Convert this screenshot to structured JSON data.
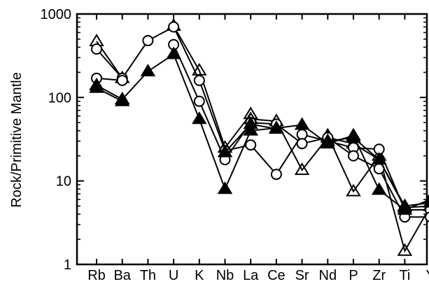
{
  "chart_data": {
    "type": "line",
    "title": "",
    "xlabel": "",
    "ylabel": "Rock/Primitive Mantle",
    "yscale": "log",
    "ylim": [
      1,
      1000
    ],
    "yticks": [
      "1",
      "10",
      "100",
      "1000"
    ],
    "categories": [
      "Rb",
      "Ba",
      "Th",
      "U",
      "K",
      "Nb",
      "La",
      "Ce",
      "Sr",
      "Nd",
      "P",
      "Zr",
      "Ti",
      "Y"
    ],
    "grid": false,
    "legend": "none",
    "series": [
      {
        "marker": "open-triangle",
        "values": [
          470,
          170,
          null,
          720,
          210,
          25,
          63,
          null,
          null,
          35,
          7.5,
          20,
          1.45,
          5
        ]
      },
      {
        "marker": "open-triangle",
        "values": [
          null,
          null,
          null,
          null,
          null,
          null,
          55,
          52,
          13.5,
          33,
          28,
          18,
          4.8,
          5
        ]
      },
      {
        "marker": "open-circle",
        "values": [
          380,
          170,
          480,
          700,
          160,
          23,
          27,
          12,
          36,
          30,
          25,
          24,
          4.5,
          4.5
        ]
      },
      {
        "marker": "open-circle",
        "values": [
          170,
          160,
          null,
          430,
          90,
          18,
          50,
          48,
          28,
          33,
          20,
          14,
          3.7,
          3.7
        ]
      },
      {
        "marker": "filled-triangle",
        "values": [
          140,
          95,
          205,
          330,
          55,
          8,
          40,
          43,
          47,
          28,
          35,
          7.8,
          4.5,
          6
        ]
      },
      {
        "marker": "filled-triangle",
        "values": [
          130,
          90,
          null,
          null,
          null,
          22,
          48,
          42,
          null,
          30,
          33,
          18,
          5,
          5.5
        ]
      }
    ]
  }
}
